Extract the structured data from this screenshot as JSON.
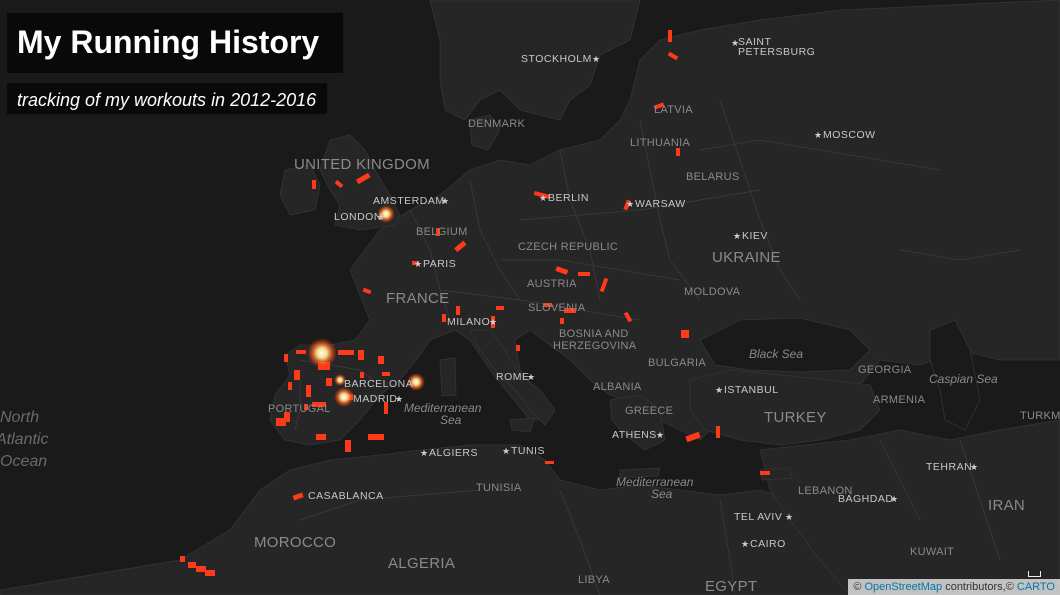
{
  "title": "My Running History",
  "subtitle": "tracking of my workouts in 2012-2016",
  "attribution": {
    "prefix": "©",
    "osm_link": "OpenStreetMap",
    "middle": " contributors,© ",
    "carto_link": "CARTO"
  },
  "colors": {
    "land": "#262626",
    "water": "#1a1a1a",
    "track": "#ff3a1a",
    "hotspot": "#ffffff",
    "label": "#bfbfbf"
  },
  "labels": {
    "cities": [
      "SAINT",
      "PETERSBURG",
      "STOCKHOLM",
      "MOSCOW",
      "AMSTERDAM",
      "BERLIN",
      "WARSAW",
      "LONDON",
      "KIEV",
      "PARIS",
      "MILANO",
      "ROME",
      "ISTANBUL",
      "BARCELONA",
      "MADRID",
      "ATHENS",
      "ALGIERS",
      "TUNIS",
      "TEHRAN",
      "BAGHDAD",
      "CASABLANCA",
      "TEL AVIV",
      "CAIRO"
    ],
    "countries": [
      "DENMARK",
      "LATVIA",
      "LITHUANIA",
      "UNITED KINGDOM",
      "BELARUS",
      "BELGIUM",
      "CZECH REPUBLIC",
      "UKRAINE",
      "AUSTRIA",
      "FRANCE",
      "MOLDOVA",
      "SLOVENIA",
      "BOSNIA AND",
      "HERZEGOVINA",
      "BULGARIA",
      "GEORGIA",
      "ALBANIA",
      "ARMENIA",
      "PORTUGAL",
      "GREECE",
      "TURKEY",
      "TURKM",
      "TUNISIA",
      "LEBANON",
      "IRAN",
      "MOROCCO",
      "ALGERIA",
      "KUWAIT",
      "LIBYA",
      "EGYPT"
    ],
    "seas": [
      "Black Sea",
      "Caspian Sea",
      "Mediterranean",
      "Sea",
      "Mediterranean",
      "Sea"
    ],
    "ocean": [
      "North",
      "Atlantic",
      "Ocean"
    ]
  }
}
